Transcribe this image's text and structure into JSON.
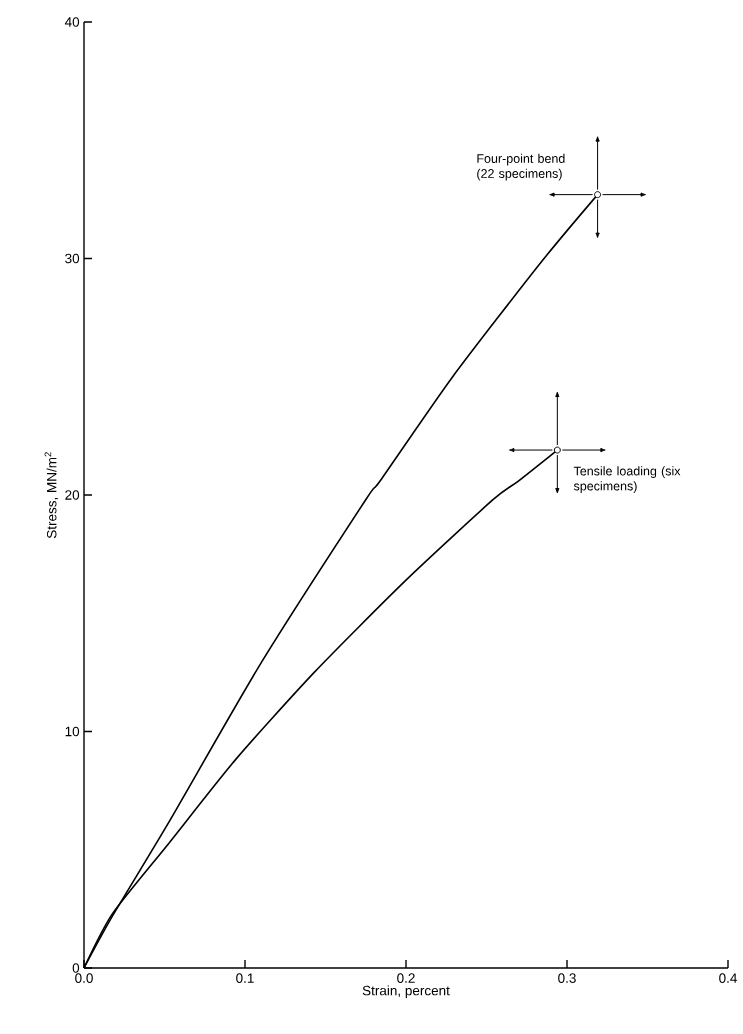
{
  "chart_data": {
    "type": "line",
    "xlabel": "Strain, percent",
    "ylabel": "Stress, MN/m$^{2}$",
    "xlim": [
      0,
      0.4
    ],
    "ylim": [
      0,
      40
    ],
    "xticks": [
      {
        "value": 0,
        "label": "0.0"
      },
      0.1,
      0.2,
      0.3,
      0.4
    ],
    "yticks": [
      0,
      10,
      20,
      30,
      40
    ],
    "grid": false,
    "marker": "none",
    "line_style": "solid",
    "series": [
      {
        "color": "#000000",
        "x": [
          0,
          0.0177,
          0.053,
          0.11,
          0.175,
          0.184,
          0.229,
          0.284,
          0.319
        ],
        "values": [
          0,
          2.2,
          6.2,
          12.9,
          19.8,
          20.6,
          25.0,
          29.85,
          32.7
        ]
      },
      {
        "color": "#000000",
        "x": [
          0,
          0.0177,
          0.053,
          0.094,
          0.143,
          0.2,
          0.254,
          0.27,
          0.294
        ],
        "values": [
          0,
          2.3,
          5.3,
          8.8,
          12.5,
          16.4,
          19.8,
          20.6,
          21.9
        ]
      }
    ],
    "annotations": [
      {
        "text": "Four-point bend (22 specimens)",
        "x": 0.319,
        "y": 32.7
      },
      {
        "text": "Tensile loading (six specimens)",
        "x": 0.294,
        "y": 21.9
      }
    ]
  }
}
